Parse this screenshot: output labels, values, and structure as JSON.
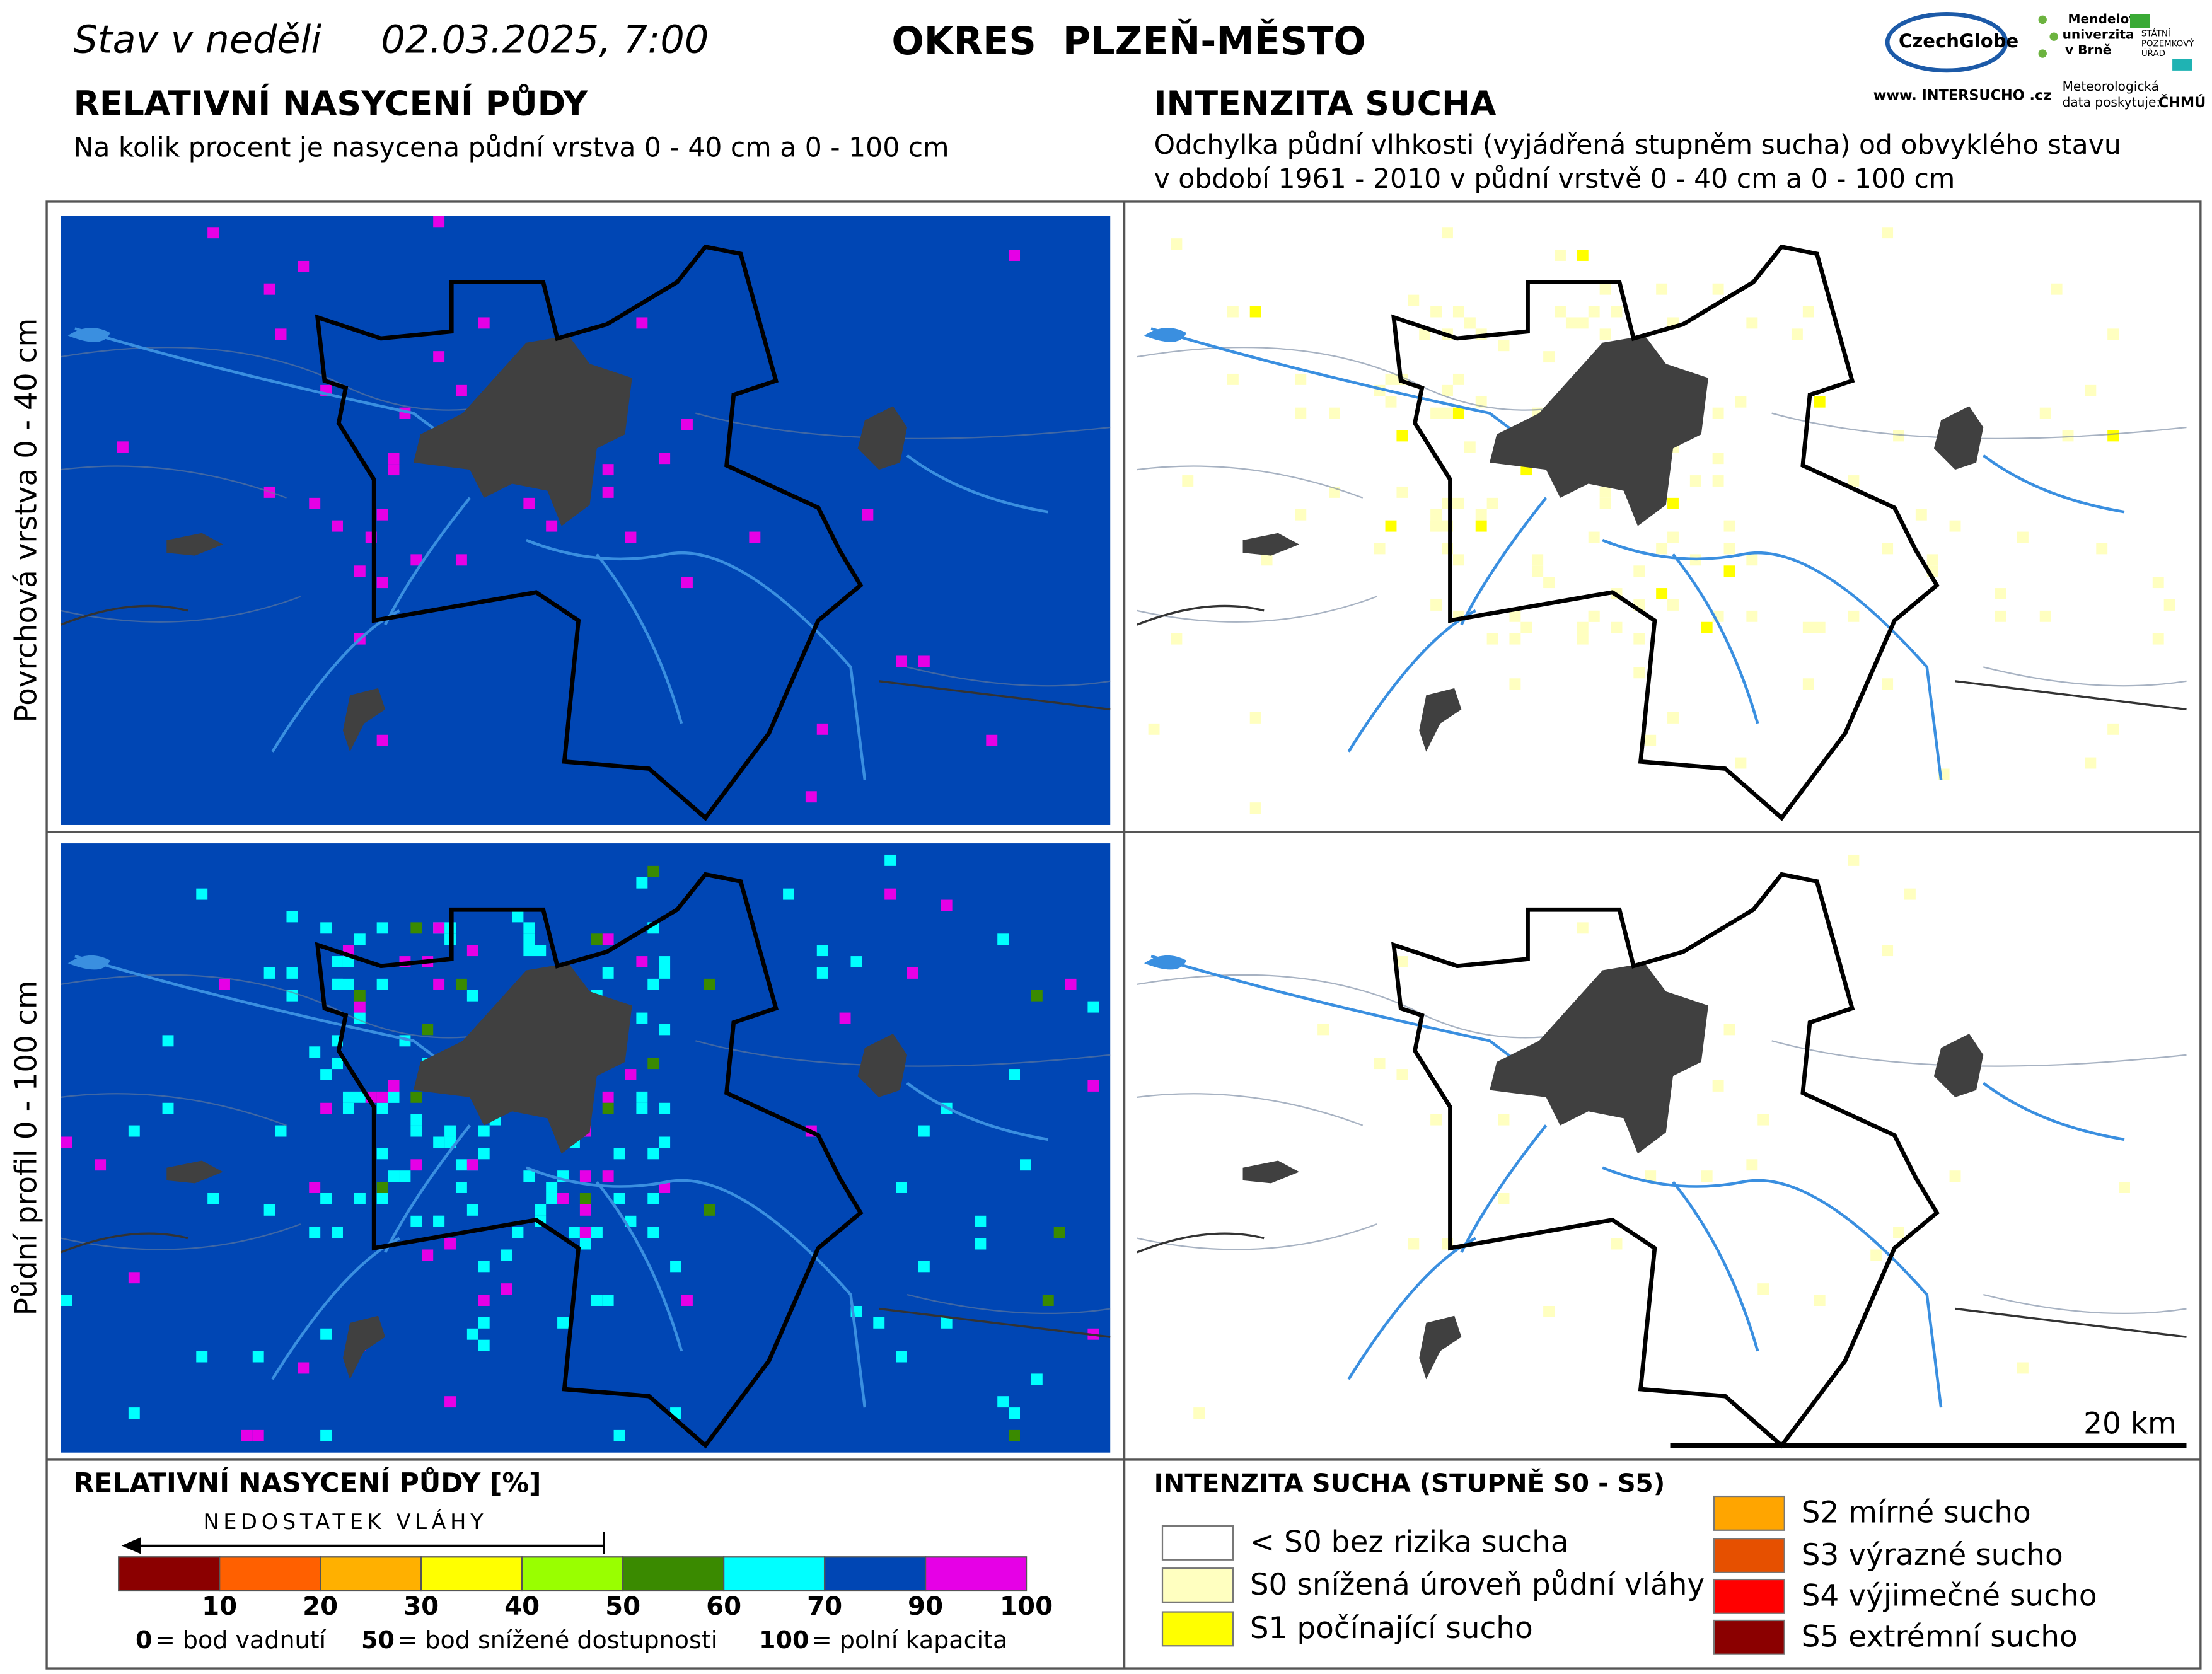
{
  "header": {
    "date_label": "Stav v neděli",
    "date": "02.03.2025, 7:00",
    "district": "OKRES  PLZEŇ-MĚSTO"
  },
  "logos": {
    "czechglobe": "CzechGlobe",
    "mendel": [
      "Mendelova",
      "univerzita",
      "v Brně"
    ],
    "spu": [
      "STÁTNÍ",
      "POZEMKOVÝ",
      "ÚŘAD"
    ],
    "intersucho": "www. INTERSUCHO .cz",
    "meteo": [
      "Meteorologická",
      "data poskytuje:"
    ],
    "chmu": "ČHMÚ"
  },
  "left": {
    "title": "RELATIVNÍ NASYCENÍ PŮDY",
    "subtitle": "Na kolik procent je nasycena půdní vrstva 0 - 40 cm a 0 - 100 cm"
  },
  "right": {
    "title": "INTENZITA SUCHA",
    "subtitle": [
      "Odchylka půdní vlhkosti (vyjádřená stupněm sucha) od obvyklého stavu",
      "v období 1961 - 2010 v půdní vrstvě 0 - 40 cm a 0 - 100 cm"
    ]
  },
  "rows": [
    "Povrchová vrstva 0 - 40 cm",
    "Půdní profil 0 - 100 cm"
  ],
  "scale_bar": "20 km",
  "saturation_legend": {
    "title": "RELATIVNÍ NASYCENÍ PŮDY [%]",
    "arrow": "NEDOSTATEK VLÁHY",
    "colors": [
      "#8b0000",
      "#ff6000",
      "#ffb000",
      "#ffff00",
      "#99ff00",
      "#3a8a00",
      "#00ffff",
      "#0046b4",
      "#e600e6"
    ],
    "ticks": [
      10,
      20,
      30,
      40,
      50,
      60,
      70,
      90,
      100
    ],
    "notes": [
      {
        "key": "0",
        "text": "= bod vadnutí"
      },
      {
        "key": "50",
        "text": "= bod snížené dostupnosti"
      },
      {
        "key": "100",
        "text": "= polní kapacita"
      }
    ]
  },
  "drought_legend": {
    "title": "INTENZITA SUCHA (STUPNĚ S0 - S5)",
    "classes": [
      {
        "label": "< S0 bez rizika sucha",
        "color": "#ffffff"
      },
      {
        "label": "S0 snížená úroveň půdní vláhy",
        "color": "#ffffc0"
      },
      {
        "label": "S1 počínající sucho",
        "color": "#ffff00"
      },
      {
        "label": "S2 mírné sucho",
        "color": "#ffa500"
      },
      {
        "label": "S3 výrazné sucho",
        "color": "#e65000"
      },
      {
        "label": "S4 výjimečné sucho",
        "color": "#ff0000"
      },
      {
        "label": "S5 extrémní sucho",
        "color": "#8b0000"
      }
    ]
  }
}
